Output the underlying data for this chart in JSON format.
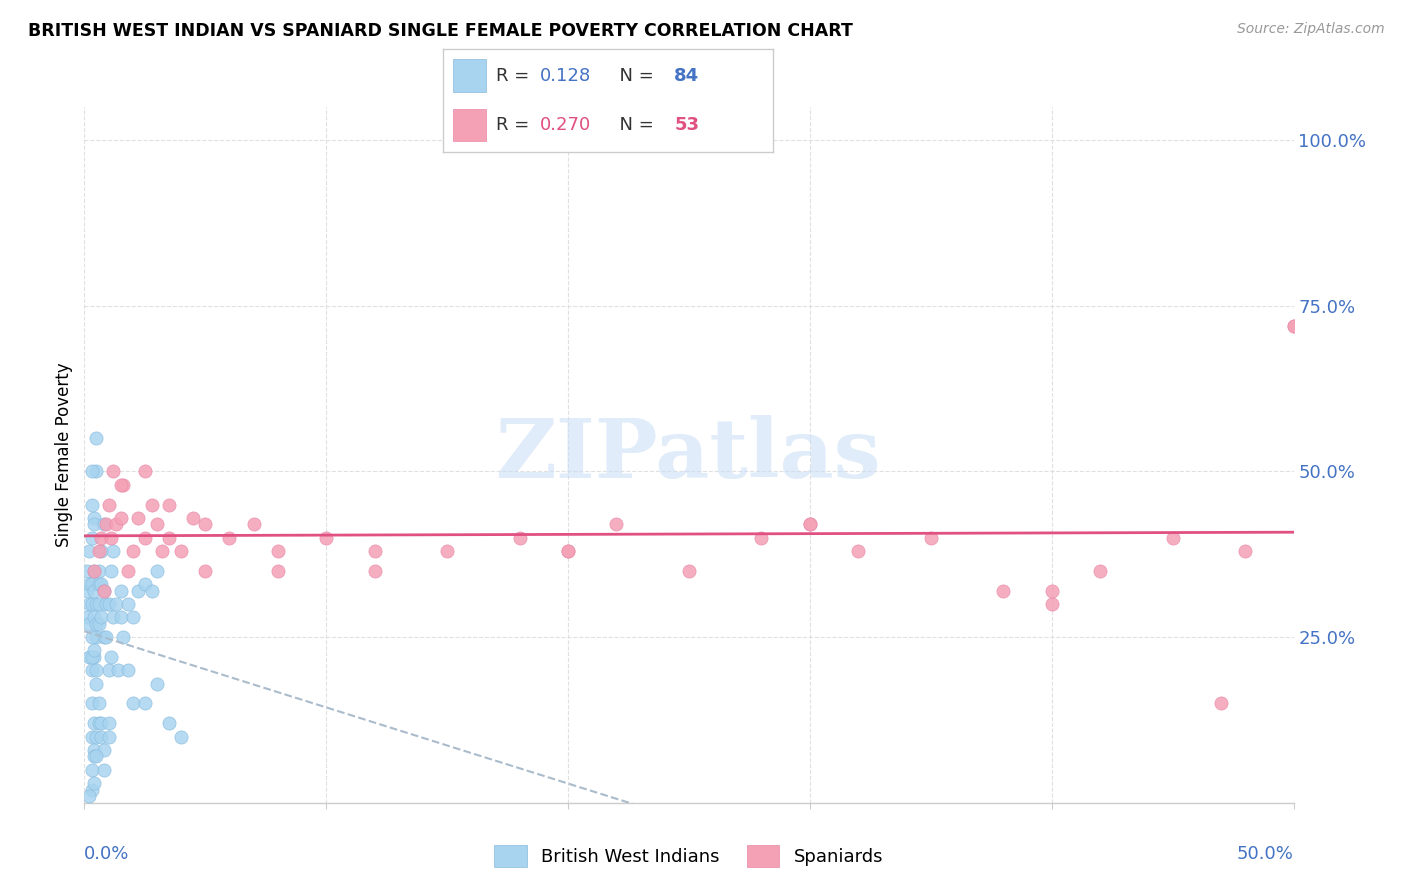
{
  "title": "BRITISH WEST INDIAN VS SPANIARD SINGLE FEMALE POVERTY CORRELATION CHART",
  "source": "Source: ZipAtlas.com",
  "ylabel": "Single Female Poverty",
  "color_blue": "#a8d4f0",
  "color_pink": "#f4a0b5",
  "color_trendline_blue": "#aaccdd",
  "color_trendline_pink": "#e05080",
  "color_axis_labels": "#4472c4",
  "color_grid": "#dddddd",
  "xmin": 0.0,
  "xmax": 0.5,
  "ymin": 0.0,
  "ymax": 1.05,
  "bwi_x": [
    0.001,
    0.001,
    0.001,
    0.002,
    0.002,
    0.002,
    0.002,
    0.002,
    0.003,
    0.003,
    0.003,
    0.003,
    0.003,
    0.003,
    0.003,
    0.004,
    0.004,
    0.004,
    0.004,
    0.004,
    0.004,
    0.004,
    0.005,
    0.005,
    0.005,
    0.005,
    0.005,
    0.006,
    0.006,
    0.006,
    0.006,
    0.006,
    0.007,
    0.007,
    0.007,
    0.007,
    0.008,
    0.008,
    0.008,
    0.009,
    0.009,
    0.01,
    0.01,
    0.01,
    0.011,
    0.011,
    0.012,
    0.012,
    0.013,
    0.014,
    0.015,
    0.015,
    0.016,
    0.018,
    0.018,
    0.02,
    0.022,
    0.025,
    0.028,
    0.03,
    0.003,
    0.004,
    0.005,
    0.005,
    0.006,
    0.007,
    0.008,
    0.01,
    0.003,
    0.004,
    0.004,
    0.003,
    0.003,
    0.002,
    0.02,
    0.025,
    0.03,
    0.035,
    0.04,
    0.003,
    0.004,
    0.005,
    0.005,
    0.008
  ],
  "bwi_y": [
    0.28,
    0.32,
    0.35,
    0.22,
    0.27,
    0.3,
    0.33,
    0.38,
    0.02,
    0.05,
    0.1,
    0.15,
    0.3,
    0.33,
    0.4,
    0.08,
    0.12,
    0.22,
    0.28,
    0.32,
    0.35,
    0.43,
    0.1,
    0.25,
    0.27,
    0.3,
    0.5,
    0.12,
    0.27,
    0.3,
    0.33,
    0.35,
    0.1,
    0.12,
    0.28,
    0.33,
    0.08,
    0.25,
    0.32,
    0.25,
    0.3,
    0.12,
    0.2,
    0.3,
    0.22,
    0.35,
    0.28,
    0.38,
    0.3,
    0.2,
    0.28,
    0.32,
    0.25,
    0.2,
    0.3,
    0.28,
    0.32,
    0.33,
    0.32,
    0.35,
    0.45,
    0.42,
    0.55,
    0.18,
    0.15,
    0.38,
    0.42,
    0.1,
    0.2,
    0.03,
    0.07,
    0.5,
    0.22,
    0.01,
    0.15,
    0.15,
    0.18,
    0.12,
    0.1,
    0.25,
    0.23,
    0.2,
    0.07,
    0.05
  ],
  "sp_x": [
    0.004,
    0.006,
    0.007,
    0.008,
    0.009,
    0.01,
    0.011,
    0.012,
    0.013,
    0.015,
    0.016,
    0.018,
    0.02,
    0.022,
    0.025,
    0.028,
    0.03,
    0.032,
    0.035,
    0.04,
    0.045,
    0.05,
    0.06,
    0.07,
    0.08,
    0.1,
    0.12,
    0.15,
    0.18,
    0.2,
    0.22,
    0.25,
    0.28,
    0.3,
    0.32,
    0.35,
    0.38,
    0.4,
    0.42,
    0.45,
    0.48,
    0.5,
    0.015,
    0.025,
    0.035,
    0.05,
    0.08,
    0.12,
    0.2,
    0.3,
    0.4,
    0.5,
    0.47
  ],
  "sp_y": [
    0.35,
    0.38,
    0.4,
    0.32,
    0.42,
    0.45,
    0.4,
    0.5,
    0.42,
    0.43,
    0.48,
    0.35,
    0.38,
    0.43,
    0.4,
    0.45,
    0.42,
    0.38,
    0.4,
    0.38,
    0.43,
    0.35,
    0.4,
    0.42,
    0.38,
    0.4,
    0.35,
    0.38,
    0.4,
    0.38,
    0.42,
    0.35,
    0.4,
    0.42,
    0.38,
    0.4,
    0.32,
    0.3,
    0.35,
    0.4,
    0.38,
    0.72,
    0.48,
    0.5,
    0.45,
    0.42,
    0.35,
    0.38,
    0.38,
    0.42,
    0.32,
    0.72,
    0.15
  ]
}
